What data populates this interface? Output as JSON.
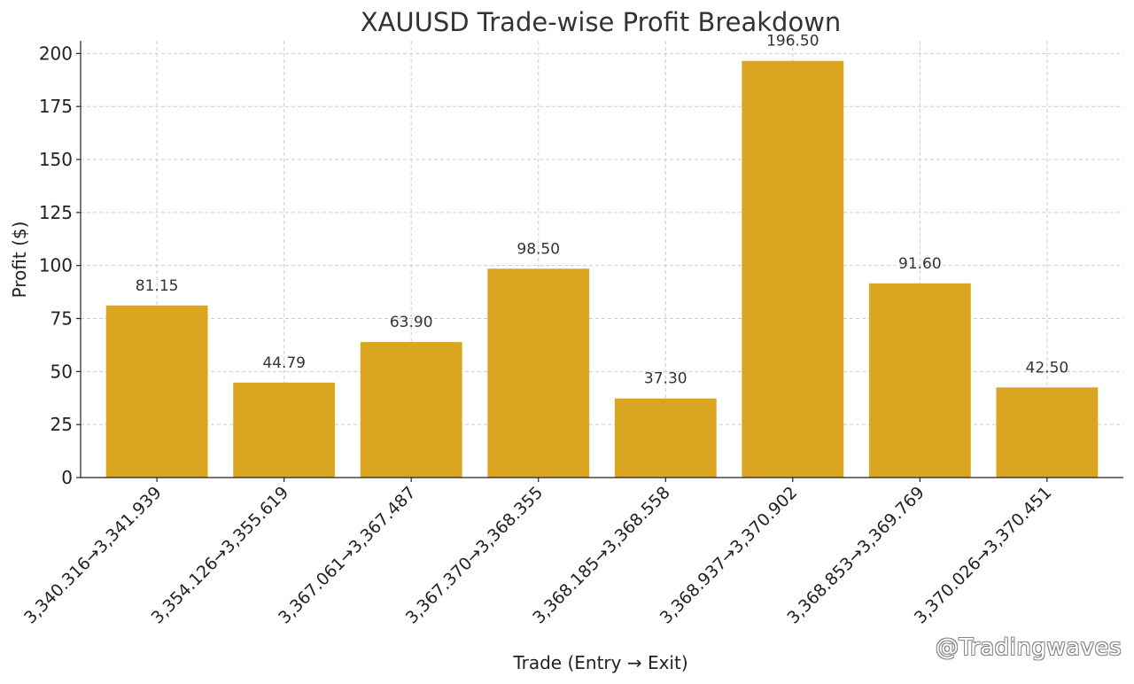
{
  "chart_data": {
    "type": "bar",
    "title": "XAUUSD Trade-wise Profit Breakdown",
    "xlabel": "Trade (Entry → Exit)",
    "ylabel": "Profit ($)",
    "categories": [
      "3,340.316→3,341.939",
      "3,354.126→3,355.619",
      "3,367.061→3,367.487",
      "3,367.370→3,368.355",
      "3,368.185→3,368.558",
      "3,368.937→3,370.902",
      "3,368.853→3,369.769",
      "3,370.026→3,370.451"
    ],
    "values": [
      81.15,
      44.79,
      63.9,
      98.5,
      37.3,
      196.5,
      91.6,
      42.5
    ],
    "data_labels": [
      "81.15",
      "44.79",
      "63.90",
      "98.50",
      "37.30",
      "196.50",
      "91.60",
      "42.50"
    ],
    "ylim": [
      0,
      206
    ],
    "yticks": [
      0,
      25,
      50,
      75,
      100,
      125,
      150,
      175,
      200
    ],
    "grid": true,
    "bar_color": "#DAA520"
  },
  "watermark": "@Tradingwaves"
}
